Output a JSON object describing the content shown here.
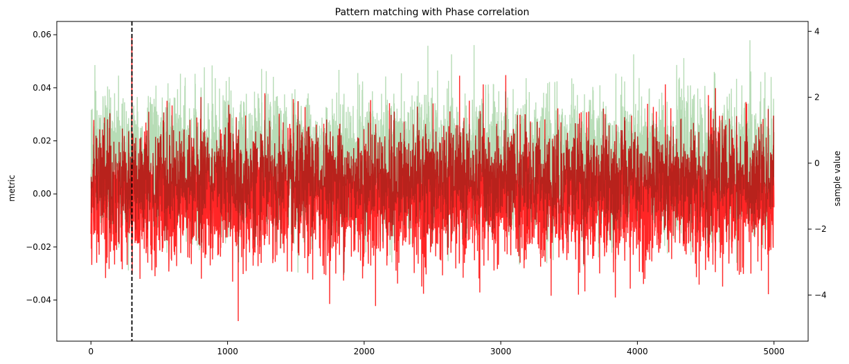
{
  "chart_data": {
    "type": "line",
    "title": "Pattern matching with Phase correlation",
    "xlabel": "",
    "ylabel": "metric",
    "y2label": "sample value",
    "xlim": [
      -250,
      5250
    ],
    "ylim": [
      -0.0555,
      0.065
    ],
    "y2lim": [
      -5.4,
      4.3
    ],
    "x_ticks": [
      0,
      1000,
      2000,
      3000,
      4000,
      5000
    ],
    "y_ticks": [
      -0.04,
      -0.02,
      0.0,
      0.02,
      0.04,
      0.06
    ],
    "y_tick_labels": [
      "−0.04",
      "−0.02",
      "0.00",
      "0.02",
      "0.04",
      "0.06"
    ],
    "y2_ticks": [
      -4,
      -2,
      0,
      2,
      4
    ],
    "y2_tick_labels": [
      "−4",
      "−2",
      "0",
      "2",
      "4"
    ],
    "grid": false,
    "legend": "none",
    "colors": {
      "metric": "#ff0000",
      "sample": "#7cc07a",
      "marker": "#000000"
    },
    "vline": {
      "x": 300,
      "style": "dashed"
    },
    "series": [
      {
        "axis": "right",
        "n_points": 5000,
        "x_range": [
          0,
          5000
        ],
        "approx_range": [
          -5.0,
          3.9
        ],
        "approx_std": 1.0,
        "alpha": 0.55
      },
      {
        "axis": "left",
        "n_points": 5000,
        "x_range": [
          0,
          5000
        ],
        "approx_range": [
          -0.05,
          0.059
        ],
        "approx_std": 0.0125,
        "peak": {
          "x": 300,
          "y": 0.059
        }
      }
    ]
  }
}
